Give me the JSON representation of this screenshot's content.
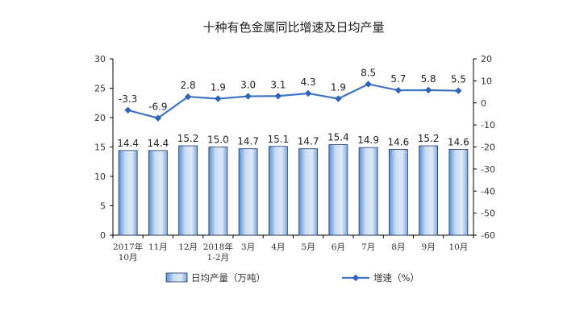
{
  "chart_data": {
    "type": "bar",
    "title": "十种有色金属同比增速及日均产量",
    "categories": [
      [
        "2017年",
        "10月"
      ],
      [
        "11月"
      ],
      [
        "12月"
      ],
      [
        "2018年",
        "1-2月"
      ],
      [
        "3月"
      ],
      [
        "4月"
      ],
      [
        "5月"
      ],
      [
        "6月"
      ],
      [
        "7月"
      ],
      [
        "8月"
      ],
      [
        "9月"
      ],
      [
        "10月"
      ]
    ],
    "series": [
      {
        "name": "日均产量（万吨）",
        "type": "bar",
        "axis": "left",
        "values": [
          14.4,
          14.4,
          15.2,
          15.0,
          14.7,
          15.1,
          14.7,
          15.4,
          14.9,
          14.6,
          15.2,
          14.6
        ],
        "labels": [
          "14.4",
          "14.4",
          "15.2",
          "15.0",
          "14.7",
          "15.1",
          "14.7",
          "15.4",
          "14.9",
          "14.6",
          "15.2",
          "14.6"
        ]
      },
      {
        "name": "增速（%）",
        "type": "line",
        "axis": "right",
        "values": [
          -3.3,
          -6.9,
          2.8,
          1.9,
          3.0,
          3.1,
          4.3,
          1.9,
          8.5,
          5.7,
          5.8,
          5.5
        ],
        "labels": [
          "-3.3",
          "-6.9",
          "2.8",
          "1.9",
          "3.0",
          "3.1",
          "4.3",
          "1.9",
          "8.5",
          "5.7",
          "5.8",
          "5.5"
        ]
      }
    ],
    "y_left": {
      "min": 0,
      "max": 30,
      "ticks": [
        "0",
        "5",
        "10",
        "15",
        "20",
        "25",
        "30"
      ]
    },
    "y_right": {
      "min": -60,
      "max": 20,
      "ticks": [
        "-60",
        "-50",
        "-40",
        "-30",
        "-20",
        "-10",
        "0",
        "10",
        "20"
      ]
    },
    "grid": false,
    "legend_position": "bottom",
    "colors": {
      "bar_fill_light": "#c9dcf3",
      "bar_fill_dark": "#5a8fd0",
      "bar_stroke": "#1f3a66",
      "line": "#3f74c4",
      "marker": "#2f63b6",
      "axis": "#000000"
    }
  }
}
